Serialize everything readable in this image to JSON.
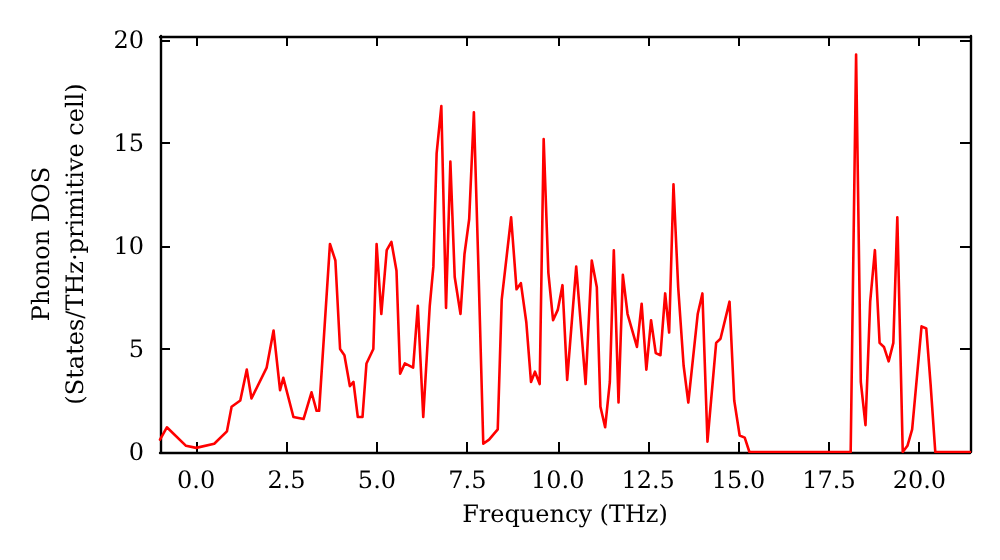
{
  "chart_data": {
    "type": "line",
    "xlabel": "Frequency (THz)",
    "ylabel": "Phonon DOS\n(States/THz·primitive cell)",
    "x": [
      -1.0,
      -0.81,
      -0.28,
      0.0,
      0.5,
      0.85,
      0.98,
      1.22,
      1.4,
      1.53,
      1.95,
      2.14,
      2.32,
      2.41,
      2.69,
      2.97,
      3.19,
      3.33,
      3.4,
      3.7,
      3.85,
      3.98,
      4.1,
      4.25,
      4.35,
      4.47,
      4.6,
      4.71,
      4.9,
      4.99,
      5.12,
      5.27,
      5.4,
      5.54,
      5.64,
      5.77,
      6.0,
      6.13,
      6.28,
      6.46,
      6.56,
      6.65,
      6.78,
      6.91,
      7.03,
      7.15,
      7.31,
      7.42,
      7.55,
      7.68,
      7.81,
      7.94,
      8.1,
      8.34,
      8.45,
      8.71,
      8.86,
      8.98,
      9.13,
      9.26,
      9.37,
      9.5,
      9.61,
      9.74,
      9.87,
      10.0,
      10.13,
      10.26,
      10.51,
      10.77,
      10.94,
      11.08,
      11.18,
      11.31,
      11.44,
      11.55,
      11.68,
      11.8,
      11.93,
      12.19,
      12.32,
      12.45,
      12.58,
      12.71,
      12.84,
      12.97,
      13.08,
      13.2,
      13.33,
      13.48,
      13.61,
      13.87,
      14.0,
      14.14,
      14.38,
      14.5,
      14.75,
      14.88,
      15.03,
      15.17,
      15.3,
      18.1,
      18.25,
      18.38,
      18.51,
      18.64,
      18.77,
      18.9,
      19.02,
      19.15,
      19.28,
      19.39,
      19.54,
      19.67,
      19.8,
      20.06,
      20.19,
      20.31,
      20.44,
      21.4
    ],
    "values": [
      0.6,
      1.2,
      0.3,
      0.2,
      0.4,
      1.0,
      2.2,
      2.5,
      4.0,
      2.6,
      4.1,
      5.9,
      3.0,
      3.6,
      1.7,
      1.6,
      2.9,
      2.0,
      2.0,
      10.1,
      9.3,
      5.0,
      4.7,
      3.2,
      3.4,
      1.7,
      1.7,
      4.3,
      5.0,
      10.1,
      6.7,
      9.8,
      10.2,
      8.8,
      3.8,
      4.3,
      4.1,
      7.1,
      1.7,
      7.1,
      9.0,
      14.5,
      16.8,
      7.0,
      14.1,
      8.5,
      6.7,
      9.6,
      11.3,
      16.5,
      8.7,
      0.4,
      0.6,
      1.1,
      7.4,
      11.4,
      7.9,
      8.2,
      6.3,
      3.4,
      3.9,
      3.3,
      15.2,
      8.7,
      6.4,
      6.9,
      8.1,
      3.5,
      9.0,
      3.3,
      9.3,
      8.0,
      2.2,
      1.2,
      3.4,
      9.8,
      2.4,
      8.6,
      6.7,
      5.1,
      7.2,
      4.0,
      6.4,
      4.8,
      4.7,
      7.7,
      5.8,
      13.0,
      8.0,
      4.2,
      2.4,
      6.7,
      7.7,
      0.5,
      5.3,
      5.5,
      7.3,
      2.5,
      0.8,
      0.7,
      0,
      0,
      19.3,
      3.4,
      1.3,
      7.3,
      9.8,
      5.3,
      5.1,
      4.4,
      5.3,
      11.4,
      0,
      0.3,
      1.1,
      6.1,
      6.0,
      3.3,
      0,
      0
    ],
    "color": "#ff0000",
    "line_style": "solid",
    "marker": "none",
    "grid": false,
    "xlim": [
      -1.0,
      21.4
    ],
    "xticks": [
      {
        "value": 0,
        "label": "0.0"
      },
      2.5,
      {
        "value": 5,
        "label": "5.0"
      },
      7.5,
      {
        "value": 10,
        "label": "10.0"
      },
      12.5,
      {
        "value": 15,
        "label": "15.0"
      },
      17.5,
      {
        "value": 20,
        "label": "20.0"
      }
    ],
    "ylim": [
      0,
      20.2
    ],
    "yticks": [
      0,
      5,
      10,
      15,
      20
    ]
  }
}
